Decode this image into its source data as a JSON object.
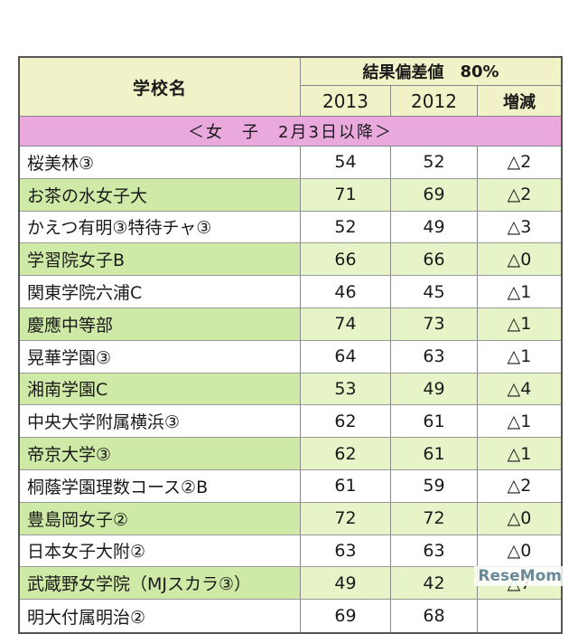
{
  "header": {
    "school_label": "学校名",
    "result_label": "結果偏差値",
    "result_pct": "80%",
    "year1": "2013",
    "year2": "2012",
    "diff_label": "増減"
  },
  "section_label": "＜女　子　2月3日以降＞",
  "rows": [
    {
      "name": "桜美林③",
      "y2013": "54",
      "y2012": "52",
      "diff": "△2"
    },
    {
      "name": "お茶の水女子大",
      "y2013": "71",
      "y2012": "69",
      "diff": "△2"
    },
    {
      "name": "かえつ有明③特待チャ③",
      "y2013": "52",
      "y2012": "49",
      "diff": "△3"
    },
    {
      "name": "学習院女子B",
      "y2013": "66",
      "y2012": "66",
      "diff": "△0"
    },
    {
      "name": "関東学院六浦C",
      "y2013": "46",
      "y2012": "45",
      "diff": "△1"
    },
    {
      "name": "慶應中等部",
      "y2013": "74",
      "y2012": "73",
      "diff": "△1"
    },
    {
      "name": "晃華学園③",
      "y2013": "64",
      "y2012": "63",
      "diff": "△1"
    },
    {
      "name": "湘南学園C",
      "y2013": "53",
      "y2012": "49",
      "diff": "△4"
    },
    {
      "name": "中央大学附属横浜③",
      "y2013": "62",
      "y2012": "61",
      "diff": "△1"
    },
    {
      "name": "帝京大学③",
      "y2013": "62",
      "y2012": "61",
      "diff": "△1"
    },
    {
      "name": "桐蔭学園理数コース②B",
      "y2013": "61",
      "y2012": "59",
      "diff": "△2"
    },
    {
      "name": "豊島岡女子②",
      "y2013": "72",
      "y2012": "72",
      "diff": "△0"
    },
    {
      "name": "日本女子大附②",
      "y2013": "63",
      "y2012": "63",
      "diff": "△0"
    },
    {
      "name": "武蔵野女学院（MJスカラ③）",
      "y2013": "49",
      "y2012": "42",
      "diff": "△7"
    },
    {
      "name": "明大付属明治②",
      "y2013": "69",
      "y2012": "68",
      "diff": ""
    }
  ],
  "watermark": "ReseMom"
}
